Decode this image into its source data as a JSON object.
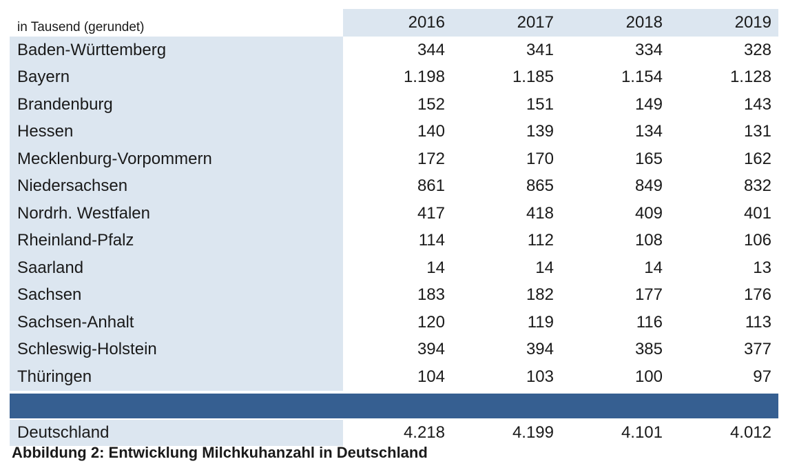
{
  "table": {
    "unit_label": "in Tausend (gerundet)",
    "years": [
      "2016",
      "2017",
      "2018",
      "2019"
    ],
    "rows": [
      {
        "state": "Baden-Württemberg",
        "values": [
          "344",
          "341",
          "334",
          "328"
        ]
      },
      {
        "state": "Bayern",
        "values": [
          "1.198",
          "1.185",
          "1.154",
          "1.128"
        ]
      },
      {
        "state": "Brandenburg",
        "values": [
          "152",
          "151",
          "149",
          "143"
        ]
      },
      {
        "state": "Hessen",
        "values": [
          "140",
          "139",
          "134",
          "131"
        ]
      },
      {
        "state": "Mecklenburg-Vorpommern",
        "values": [
          "172",
          "170",
          "165",
          "162"
        ]
      },
      {
        "state": "Niedersachsen",
        "values": [
          "861",
          "865",
          "849",
          "832"
        ]
      },
      {
        "state": "Nordrh. Westfalen",
        "values": [
          "417",
          "418",
          "409",
          "401"
        ]
      },
      {
        "state": "Rheinland-Pfalz",
        "values": [
          "114",
          "112",
          "108",
          "106"
        ]
      },
      {
        "state": "Saarland",
        "values": [
          "14",
          "14",
          "14",
          "13"
        ]
      },
      {
        "state": "Sachsen",
        "values": [
          "183",
          "182",
          "177",
          "176"
        ]
      },
      {
        "state": "Sachsen-Anhalt",
        "values": [
          "120",
          "119",
          "116",
          "113"
        ]
      },
      {
        "state": "Schleswig-Holstein",
        "values": [
          "394",
          "394",
          "385",
          "377"
        ]
      },
      {
        "state": "Thüringen",
        "values": [
          "104",
          "103",
          "100",
          "97"
        ]
      }
    ],
    "total": {
      "label": "Deutschland",
      "values": [
        "4.218",
        "4.199",
        "4.101",
        "4.012"
      ]
    }
  },
  "caption": "Abbildung 2: Entwicklung Milchkuhanzahl in Deutschland",
  "colors": {
    "label_fill": "#dce6f0",
    "band": "#365f91"
  }
}
